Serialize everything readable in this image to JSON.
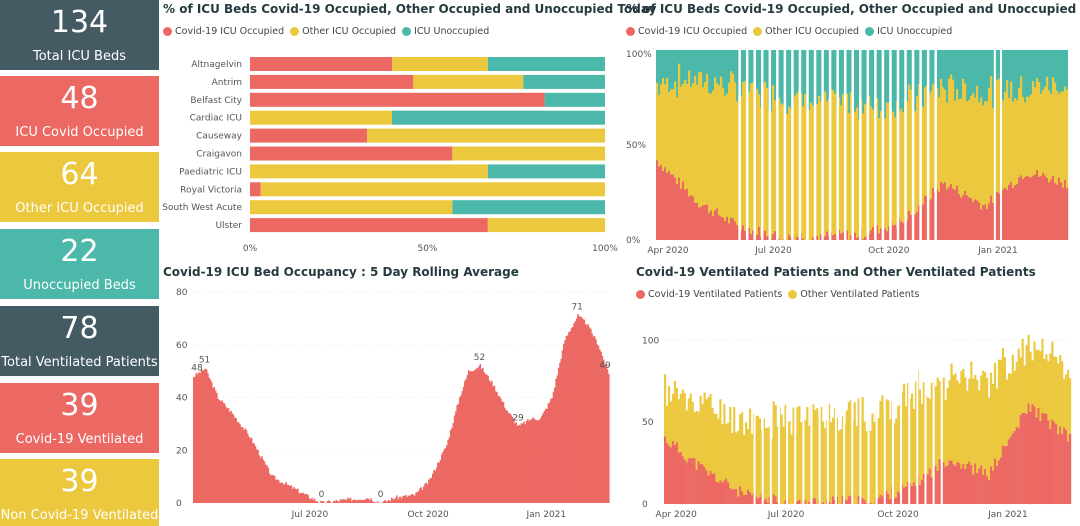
{
  "colors": {
    "covid": "#ec6862",
    "other": "#ebc83e",
    "unocc": "#4bb8a9",
    "dark": "#445b64"
  },
  "kpis": [
    {
      "value": "134",
      "label": "Total ICU Beds",
      "color": "#445b64"
    },
    {
      "value": "48",
      "label": "ICU Covid Occupied",
      "color": "#ec6862"
    },
    {
      "value": "64",
      "label": "Other ICU Occupied",
      "color": "#ebc83e"
    },
    {
      "value": "22",
      "label": "Unoccupied Beds",
      "color": "#4bb8a9"
    },
    {
      "value": "78",
      "label": "Total Ventilated Patients",
      "color": "#445b64"
    },
    {
      "value": "39",
      "label": "Covid-19 Ventilated",
      "color": "#ec6862"
    },
    {
      "value": "39",
      "label": "Non Covid-19 Ventilated",
      "color": "#ebc83e"
    }
  ],
  "chart1": {
    "title": "% of ICU Beds Covid-19 Occupied, Other Occupied and Unoccupied Today",
    "legend": [
      "Covid-19 ICU Occupied",
      "Other ICU Occupied",
      "ICU Unoccupied"
    ]
  },
  "chart2": {
    "title": "% of ICU Beds Covid-19 Occupied, Other Occupied and Unoccupied",
    "legend": [
      "Covid-19 ICU Occupied",
      "Other ICU Occupied",
      "ICU Unoccupied"
    ]
  },
  "chart3": {
    "title": "Covid-19 ICU Bed Occupancy : 5 Day Rolling Average"
  },
  "chart4": {
    "title": "Covid-19 Ventilated Patients and Other Ventilated Patients",
    "legend": [
      "Covid-19 Ventilated Patients",
      "Other Ventilated Patients"
    ]
  },
  "chart_data": [
    {
      "type": "bar",
      "orientation": "horizontal-stacked-100",
      "categories": [
        "Altnagelvin",
        "Antrim",
        "Belfast City",
        "Cardiac ICU",
        "Causeway",
        "Craigavon",
        "Paediatric ICU",
        "Royal Victoria",
        "South West Acute",
        "Ulster"
      ],
      "series": [
        {
          "name": "Covid-19 ICU Occupied",
          "values": [
            40,
            46,
            83,
            0,
            33,
            57,
            0,
            3,
            0,
            67
          ]
        },
        {
          "name": "Other ICU Occupied",
          "values": [
            27,
            31,
            0,
            40,
            67,
            43,
            67,
            97,
            57,
            33
          ]
        },
        {
          "name": "ICU Unoccupied",
          "values": [
            33,
            23,
            17,
            60,
            0,
            0,
            33,
            0,
            43,
            0
          ]
        }
      ],
      "xticks": [
        "0%",
        "50%",
        "100%"
      ],
      "xlim": [
        0,
        100
      ]
    },
    {
      "type": "area",
      "stacked": "100%",
      "x": [
        "Apr 2020",
        "May 2020",
        "Jun 2020",
        "Jul 2020",
        "Aug 2020",
        "Sep 2020",
        "Oct 2020",
        "Nov 2020",
        "Dec 2020",
        "Jan 2021",
        "Feb 2021"
      ],
      "series": [
        {
          "name": "Covid-19 ICU Occupied",
          "values": [
            42,
            20,
            7,
            2,
            2,
            3,
            10,
            30,
            18,
            36,
            30
          ]
        },
        {
          "name": "Other ICU Occupied",
          "values": [
            40,
            65,
            72,
            74,
            70,
            68,
            62,
            50,
            60,
            44,
            52
          ]
        },
        {
          "name": "ICU Unoccupied",
          "values": [
            18,
            15,
            21,
            24,
            28,
            29,
            28,
            20,
            22,
            20,
            18
          ]
        }
      ],
      "xticks": [
        "Apr 2020",
        "Jul 2020",
        "Oct 2020",
        "Jan 2021"
      ],
      "yticks": [
        "0%",
        "50%",
        "100%"
      ],
      "ylim": [
        0,
        100
      ]
    },
    {
      "type": "area",
      "x": [
        "2020-04-01",
        "2020-04-10",
        "2020-04-20",
        "2020-05-01",
        "2020-05-15",
        "2020-06-01",
        "2020-06-20",
        "2020-07-01",
        "2020-07-10",
        "2020-07-25",
        "2020-08-15",
        "2020-08-25",
        "2020-09-05",
        "2020-09-20",
        "2020-10-01",
        "2020-10-15",
        "2020-10-25",
        "2020-11-01",
        "2020-11-10",
        "2020-11-20",
        "2020-12-01",
        "2020-12-10",
        "2020-12-20",
        "2020-12-27",
        "2021-01-05",
        "2021-01-15",
        "2021-01-25",
        "2021-02-01",
        "2021-02-10",
        "2021-02-18"
      ],
      "y": [
        48,
        51,
        40,
        34,
        25,
        10,
        5,
        2,
        0,
        1,
        2,
        0,
        2,
        3,
        8,
        22,
        40,
        50,
        52,
        45,
        35,
        29,
        32,
        32,
        40,
        62,
        71,
        68,
        60,
        49
      ],
      "annotations": [
        {
          "x": "2020-04-01",
          "label": "48"
        },
        {
          "x": "2020-04-10",
          "label": "51"
        },
        {
          "x": "2020-07-10",
          "label": "0"
        },
        {
          "x": "2020-08-25",
          "label": "0"
        },
        {
          "x": "2020-11-10",
          "label": "52"
        },
        {
          "x": "2020-12-10",
          "label": "29"
        },
        {
          "x": "2021-01-25",
          "label": "71"
        },
        {
          "x": "2021-02-18",
          "label": "49"
        }
      ],
      "xticks": [
        "Jul 2020",
        "Oct 2020",
        "Jan 2021"
      ],
      "yticks": [
        "0",
        "20",
        "40",
        "60",
        "80"
      ],
      "ylim": [
        0,
        80
      ]
    },
    {
      "type": "area",
      "stacked": true,
      "x": [
        "Apr 2020",
        "May 2020",
        "Jun 2020",
        "Jul 2020",
        "Aug 2020",
        "Sep 2020",
        "Oct 2020",
        "Nov 2020",
        "Dec 2020",
        "Jan 2021",
        "Feb 2021"
      ],
      "series": [
        {
          "name": "Covid-19 Ventilated Patients",
          "values": [
            40,
            20,
            5,
            1,
            1,
            2,
            10,
            28,
            18,
            60,
            40
          ]
        },
        {
          "name": "Other Ventilated Patients",
          "values": [
            30,
            40,
            45,
            50,
            55,
            52,
            55,
            50,
            60,
            35,
            40
          ]
        }
      ],
      "xticks": [
        "Apr 2020",
        "Jul 2020",
        "Oct 2020",
        "Jan 2021"
      ],
      "yticks": [
        "0",
        "50",
        "100"
      ],
      "ylim": [
        0,
        110
      ]
    }
  ]
}
